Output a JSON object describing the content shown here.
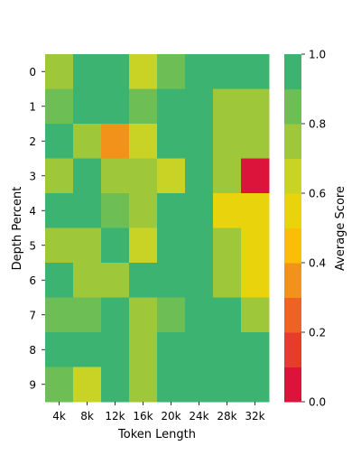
{
  "chart_data": {
    "type": "heatmap",
    "title": "",
    "xlabel": "Token Length",
    "ylabel": "Depth Percent",
    "x_categories": [
      "4k",
      "8k",
      "12k",
      "16k",
      "20k",
      "24k",
      "28k",
      "32k"
    ],
    "y_categories": [
      "0",
      "1",
      "2",
      "3",
      "4",
      "5",
      "6",
      "7",
      "8",
      "9"
    ],
    "values": [
      [
        0.75,
        1.0,
        1.0,
        0.65,
        0.85,
        1.0,
        1.0,
        1.0
      ],
      [
        0.85,
        1.0,
        1.0,
        0.85,
        1.0,
        1.0,
        0.75,
        0.75
      ],
      [
        1.0,
        0.75,
        0.35,
        0.65,
        1.0,
        1.0,
        0.75,
        0.75
      ],
      [
        0.75,
        1.0,
        0.75,
        0.75,
        0.65,
        1.0,
        0.75,
        0.0
      ],
      [
        1.0,
        1.0,
        0.85,
        0.75,
        1.0,
        1.0,
        0.55,
        0.55
      ],
      [
        0.75,
        0.75,
        1.0,
        0.65,
        1.0,
        1.0,
        0.75,
        0.55
      ],
      [
        1.0,
        0.75,
        0.75,
        1.0,
        1.0,
        1.0,
        0.75,
        0.55
      ],
      [
        0.85,
        0.85,
        1.0,
        0.75,
        0.85,
        1.0,
        1.0,
        0.75
      ],
      [
        1.0,
        1.0,
        1.0,
        0.75,
        1.0,
        1.0,
        1.0,
        1.0
      ],
      [
        0.85,
        0.65,
        1.0,
        0.75,
        1.0,
        1.0,
        1.0,
        1.0
      ]
    ],
    "colorbar": {
      "label": "Average Score",
      "range": [
        0,
        1
      ],
      "ticks": [
        "0.0",
        "0.2",
        "0.4",
        "0.6",
        "0.8",
        "1.0"
      ],
      "colors": [
        "#dc143c",
        "#e63c2c",
        "#ee6224",
        "#f3921a",
        "#fbbd08",
        "#e8d30c",
        "#c8d326",
        "#9ec83a",
        "#6ebe56",
        "#3cb371"
      ]
    },
    "grid": false
  }
}
